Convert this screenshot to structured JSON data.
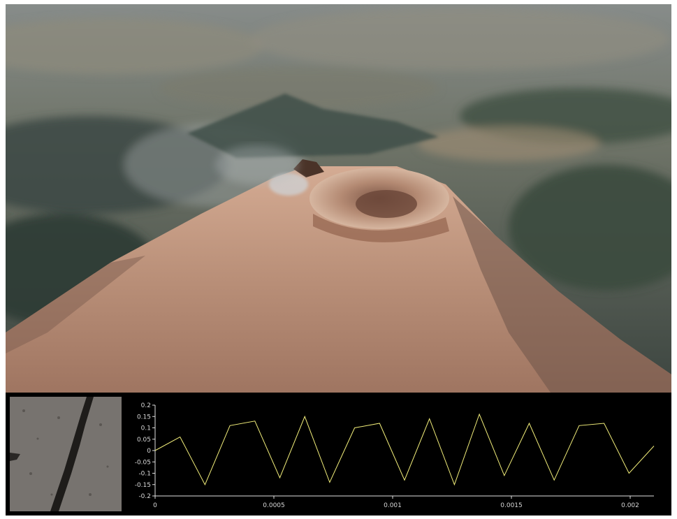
{
  "photo": {
    "subject": "aerial-volcano-crater",
    "colors": {
      "sky_haze": "#7f8585",
      "valley": "#3f4b44",
      "slope": "#b78f79",
      "crater_rim": "#8a5a44"
    }
  },
  "rock_thumbnail": {
    "subject": "rock-sample-fracture",
    "colors": {
      "rock": "#6e6a66"
    }
  },
  "chart_data": {
    "type": "line",
    "title": "",
    "xlabel": "",
    "ylabel": "",
    "xlim": [
      0,
      0.0021
    ],
    "ylim": [
      -0.2,
      0.2
    ],
    "xticks": [
      "0",
      "0.0005",
      "0.001",
      "0.0015",
      "0.002"
    ],
    "xtick_values": [
      0,
      0.0005,
      0.001,
      0.0015,
      0.002
    ],
    "yticks": [
      "0.2",
      "0.15",
      "0.1",
      "0.05",
      "0",
      "-0.05",
      "-0.1",
      "-0.15",
      "-0.2"
    ],
    "ytick_values": [
      0.2,
      0.15,
      0.1,
      0.05,
      0,
      -0.05,
      -0.1,
      -0.15,
      -0.2
    ],
    "series": [
      {
        "color": "#f2ee7a",
        "x": [
          0,
          0.000105,
          0.00021,
          0.000315,
          0.00042,
          0.000525,
          0.00063,
          0.000735,
          0.00084,
          0.000945,
          0.00105,
          0.001155,
          0.00126,
          0.001365,
          0.00147,
          0.001575,
          0.00168,
          0.001785,
          0.00189,
          0.001995,
          0.0021
        ],
        "y": [
          0.0,
          0.06,
          -0.15,
          0.11,
          0.13,
          -0.12,
          0.15,
          -0.14,
          0.1,
          0.12,
          -0.13,
          0.14,
          -0.15,
          0.16,
          -0.11,
          0.12,
          -0.13,
          0.11,
          0.12,
          -0.1,
          0.02
        ]
      }
    ],
    "grid": false,
    "legend": "none"
  }
}
